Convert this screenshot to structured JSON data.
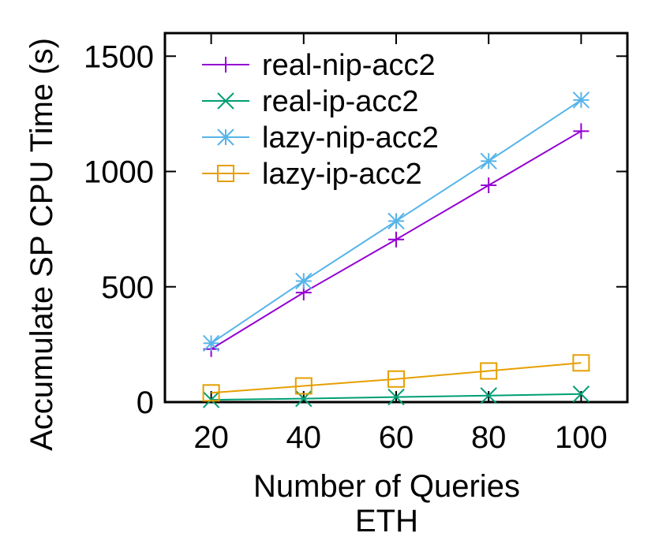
{
  "chart_data": {
    "type": "line",
    "xlabel": "Number of Queries",
    "subtitle": "ETH",
    "ylabel": "Accumulate SP CPU Time (s)",
    "xlim": [
      10,
      110
    ],
    "ylim": [
      0,
      1600
    ],
    "x_ticks": [
      "20",
      "40",
      "60",
      "80",
      "100"
    ],
    "y_ticks": [
      "0",
      "500",
      "1000",
      "1500"
    ],
    "x": [
      20,
      40,
      60,
      80,
      100
    ],
    "legend_position": "top-left",
    "grid": false,
    "series": [
      {
        "name": "real-nip-acc2",
        "values": [
          230,
          475,
          705,
          940,
          1175
        ],
        "color": "#9400d3",
        "marker": "plus"
      },
      {
        "name": "real-ip-acc2",
        "values": [
          10,
          15,
          22,
          28,
          35
        ],
        "color": "#009e73",
        "marker": "cross"
      },
      {
        "name": "lazy-nip-acc2",
        "values": [
          255,
          525,
          785,
          1045,
          1310
        ],
        "color": "#56b4e9",
        "marker": "star"
      },
      {
        "name": "lazy-ip-acc2",
        "values": [
          40,
          70,
          100,
          135,
          170
        ],
        "color": "#e69f00",
        "marker": "square"
      }
    ]
  }
}
